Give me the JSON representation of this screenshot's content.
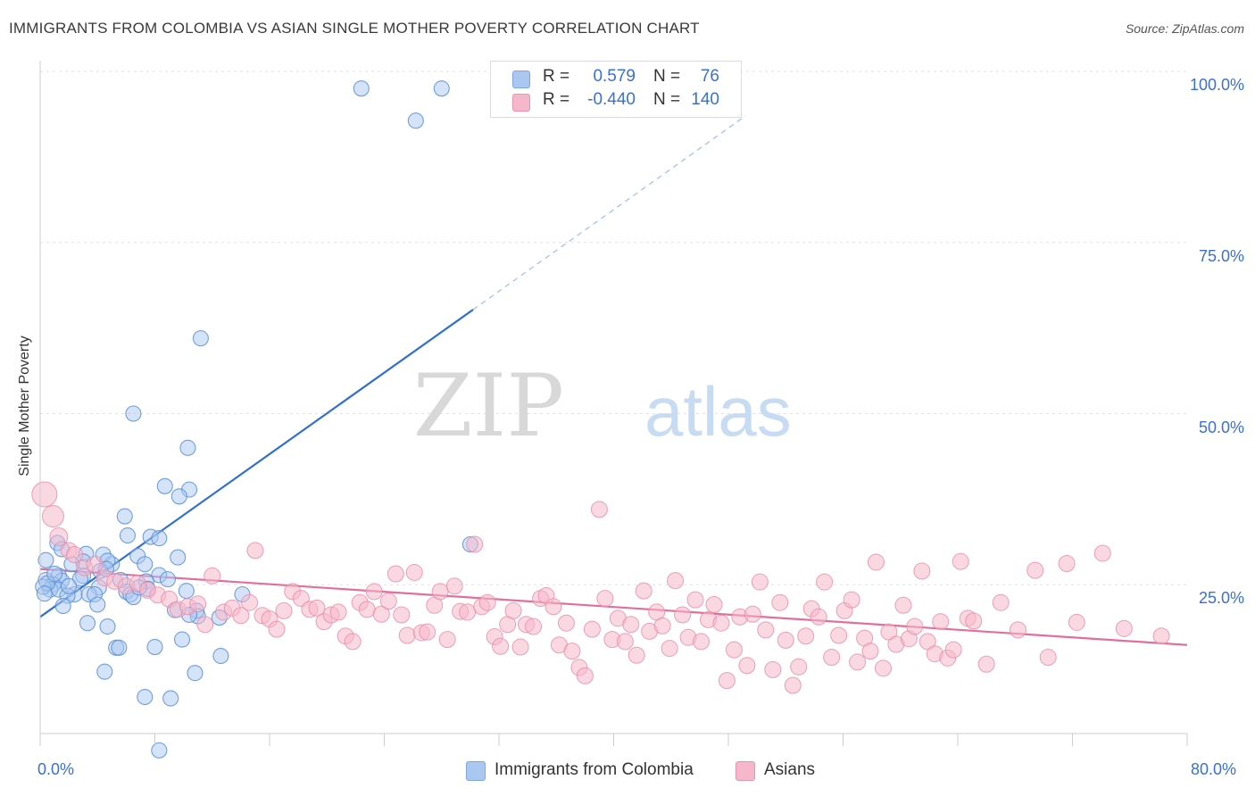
{
  "header": {
    "title": "IMMIGRANTS FROM COLOMBIA VS ASIAN SINGLE MOTHER POVERTY CORRELATION CHART",
    "source": "Source: ZipAtlas.com"
  },
  "watermark": {
    "zip": "ZIP",
    "atlas": "atlas"
  },
  "legend_top": {
    "rows": [
      {
        "r_label": "R =",
        "r_value": "0.579",
        "n_label": "N =",
        "n_value": "76",
        "color": "#a9c7f0"
      },
      {
        "r_label": "R =",
        "r_value": "-0.440",
        "n_label": "N =",
        "n_value": "140",
        "color": "#f5b8cb"
      }
    ]
  },
  "legend_bottom": {
    "items": [
      {
        "label": "Immigrants from Colombia",
        "color": "#a9c7f0"
      },
      {
        "label": "Asians",
        "color": "#f5b8cb"
      }
    ]
  },
  "chart_data": {
    "type": "scatter",
    "title": "IMMIGRANTS FROM COLOMBIA VS ASIAN SINGLE MOTHER POVERTY CORRELATION CHART",
    "xlabel": "",
    "ylabel": "Single Mother Poverty",
    "xlim": [
      0,
      80
    ],
    "ylim": [
      0,
      100
    ],
    "x_tick_labels": [
      "0.0%",
      "80.0%"
    ],
    "y_tick_labels": [
      "25.0%",
      "50.0%",
      "75.0%",
      "100.0%"
    ],
    "y_ticks": [
      25,
      50,
      75,
      100
    ],
    "grid": true,
    "legend_placement": "top-center",
    "colors": {
      "blue_fill": "#a9c7f0",
      "blue_stroke": "#5b8fd9",
      "blue_line": "#2f6fd0",
      "pink_fill": "#f5b8cb",
      "pink_stroke": "#e88aa8",
      "pink_line": "#e0709a",
      "tick_label": "#3a6fd8"
    },
    "series": [
      {
        "name": "Immigrants from Colombia",
        "color": "#a9c7f0",
        "points": [
          [
            22.4,
            97.5
          ],
          [
            28.0,
            97.5
          ],
          [
            26.2,
            92.8
          ],
          [
            11.2,
            61.0
          ],
          [
            6.5,
            50.0
          ],
          [
            10.3,
            45.0
          ],
          [
            8.7,
            39.4
          ],
          [
            10.4,
            38.9
          ],
          [
            9.7,
            37.9
          ],
          [
            5.9,
            35.0
          ],
          [
            30.0,
            30.9
          ],
          [
            6.1,
            32.2
          ],
          [
            7.7,
            32.0
          ],
          [
            1.2,
            31.1
          ],
          [
            8.3,
            31.8
          ],
          [
            4.4,
            29.4
          ],
          [
            3.2,
            29.5
          ],
          [
            1.5,
            30.2
          ],
          [
            9.6,
            29.0
          ],
          [
            6.8,
            29.2
          ],
          [
            3.0,
            28.4
          ],
          [
            5.0,
            28.0
          ],
          [
            4.7,
            28.5
          ],
          [
            0.4,
            28.6
          ],
          [
            2.2,
            28.0
          ],
          [
            7.3,
            28.0
          ],
          [
            4.2,
            27.0
          ],
          [
            4.6,
            27.3
          ],
          [
            1.3,
            26.3
          ],
          [
            3.0,
            26.3
          ],
          [
            2.8,
            25.9
          ],
          [
            1.5,
            25.6
          ],
          [
            8.3,
            26.4
          ],
          [
            0.4,
            25.7
          ],
          [
            8.9,
            25.8
          ],
          [
            0.9,
            25.0
          ],
          [
            7.4,
            25.5
          ],
          [
            4.1,
            24.6
          ],
          [
            7.5,
            24.4
          ],
          [
            0.7,
            24.3
          ],
          [
            1.3,
            24.3
          ],
          [
            2.4,
            23.6
          ],
          [
            3.4,
            23.6
          ],
          [
            6.0,
            24.0
          ],
          [
            5.6,
            25.7
          ],
          [
            3.8,
            23.6
          ],
          [
            6.3,
            23.6
          ],
          [
            10.2,
            24.1
          ],
          [
            14.1,
            23.6
          ],
          [
            1.9,
            23.4
          ],
          [
            6.5,
            23.2
          ],
          [
            1.6,
            21.9
          ],
          [
            9.4,
            21.3
          ],
          [
            10.9,
            21.2
          ],
          [
            4.0,
            22.1
          ],
          [
            11.0,
            20.4
          ],
          [
            10.4,
            20.6
          ],
          [
            12.5,
            20.2
          ],
          [
            3.3,
            19.4
          ],
          [
            4.7,
            18.9
          ],
          [
            9.9,
            17.0
          ],
          [
            5.3,
            15.8
          ],
          [
            5.5,
            15.8
          ],
          [
            8.0,
            15.9
          ],
          [
            12.6,
            14.6
          ],
          [
            4.5,
            12.3
          ],
          [
            10.8,
            12.1
          ],
          [
            7.3,
            8.6
          ],
          [
            9.1,
            8.4
          ],
          [
            8.3,
            0.8
          ],
          [
            0.2,
            24.7
          ],
          [
            0.5,
            25.2
          ],
          [
            1.0,
            26.6
          ],
          [
            2.0,
            24.8
          ],
          [
            6.9,
            24.6
          ],
          [
            0.3,
            23.7
          ]
        ]
      },
      {
        "name": "Asians",
        "color": "#f5b8cb",
        "points": [
          [
            0.3,
            38.2
          ],
          [
            0.9,
            35.0
          ],
          [
            1.3,
            32.0
          ],
          [
            2.0,
            30.0
          ],
          [
            2.4,
            29.4
          ],
          [
            3.1,
            27.5
          ],
          [
            3.8,
            28.0
          ],
          [
            4.5,
            26.0
          ],
          [
            5.2,
            25.5
          ],
          [
            6.0,
            24.8
          ],
          [
            6.8,
            25.2
          ],
          [
            7.5,
            24.2
          ],
          [
            8.2,
            23.5
          ],
          [
            9.0,
            22.9
          ],
          [
            9.6,
            21.4
          ],
          [
            10.3,
            21.8
          ],
          [
            11.0,
            22.2
          ],
          [
            11.5,
            19.2
          ],
          [
            12.0,
            26.3
          ],
          [
            12.8,
            21.0
          ],
          [
            13.4,
            21.6
          ],
          [
            14.0,
            20.5
          ],
          [
            14.6,
            22.4
          ],
          [
            15.0,
            30.0
          ],
          [
            15.5,
            20.5
          ],
          [
            16.0,
            20.0
          ],
          [
            16.5,
            18.5
          ],
          [
            17.0,
            21.2
          ],
          [
            17.6,
            24.0
          ],
          [
            18.2,
            23.0
          ],
          [
            18.8,
            21.4
          ],
          [
            19.3,
            21.6
          ],
          [
            19.8,
            19.6
          ],
          [
            20.3,
            20.6
          ],
          [
            20.8,
            21.0
          ],
          [
            21.3,
            17.5
          ],
          [
            21.8,
            16.7
          ],
          [
            22.3,
            22.4
          ],
          [
            22.8,
            21.4
          ],
          [
            23.3,
            24.0
          ],
          [
            23.8,
            20.7
          ],
          [
            24.3,
            22.6
          ],
          [
            24.8,
            26.6
          ],
          [
            25.2,
            20.6
          ],
          [
            25.6,
            17.6
          ],
          [
            26.1,
            26.8
          ],
          [
            26.6,
            18.0
          ],
          [
            27.0,
            18.1
          ],
          [
            27.5,
            22.0
          ],
          [
            27.9,
            24.0
          ],
          [
            28.4,
            17.0
          ],
          [
            28.9,
            24.8
          ],
          [
            29.3,
            21.1
          ],
          [
            29.8,
            21.0
          ],
          [
            30.3,
            30.9
          ],
          [
            30.8,
            21.8
          ],
          [
            31.2,
            22.4
          ],
          [
            31.7,
            17.4
          ],
          [
            32.1,
            16.0
          ],
          [
            32.6,
            19.2
          ],
          [
            33.0,
            21.2
          ],
          [
            33.5,
            15.9
          ],
          [
            33.9,
            19.2
          ],
          [
            34.4,
            18.9
          ],
          [
            34.9,
            23.0
          ],
          [
            35.3,
            23.4
          ],
          [
            35.8,
            21.8
          ],
          [
            36.2,
            16.2
          ],
          [
            36.7,
            19.4
          ],
          [
            37.1,
            15.3
          ],
          [
            37.6,
            12.9
          ],
          [
            38.0,
            11.7
          ],
          [
            38.5,
            18.5
          ],
          [
            39.0,
            36.0
          ],
          [
            39.4,
            23.0
          ],
          [
            39.9,
            17.0
          ],
          [
            40.3,
            20.1
          ],
          [
            40.8,
            16.7
          ],
          [
            41.2,
            19.2
          ],
          [
            41.6,
            14.7
          ],
          [
            42.1,
            24.1
          ],
          [
            42.5,
            18.2
          ],
          [
            43.0,
            21.0
          ],
          [
            43.4,
            19.0
          ],
          [
            43.9,
            15.7
          ],
          [
            44.3,
            25.6
          ],
          [
            44.8,
            20.6
          ],
          [
            45.2,
            17.3
          ],
          [
            45.7,
            22.8
          ],
          [
            46.1,
            16.7
          ],
          [
            46.6,
            19.9
          ],
          [
            47.0,
            22.1
          ],
          [
            47.5,
            19.4
          ],
          [
            47.9,
            11.0
          ],
          [
            48.4,
            15.5
          ],
          [
            48.8,
            20.3
          ],
          [
            49.3,
            13.2
          ],
          [
            49.7,
            20.7
          ],
          [
            50.2,
            25.4
          ],
          [
            50.6,
            18.4
          ],
          [
            51.1,
            12.6
          ],
          [
            51.6,
            22.4
          ],
          [
            52.0,
            16.9
          ],
          [
            52.5,
            10.3
          ],
          [
            52.9,
            13.0
          ],
          [
            53.4,
            17.5
          ],
          [
            53.8,
            21.5
          ],
          [
            54.3,
            20.3
          ],
          [
            54.7,
            25.4
          ],
          [
            55.2,
            14.4
          ],
          [
            55.7,
            17.6
          ],
          [
            56.1,
            21.2
          ],
          [
            56.6,
            22.8
          ],
          [
            57.0,
            13.7
          ],
          [
            57.5,
            17.2
          ],
          [
            57.9,
            15.3
          ],
          [
            58.3,
            28.3
          ],
          [
            58.8,
            12.8
          ],
          [
            59.2,
            18.1
          ],
          [
            59.7,
            16.3
          ],
          [
            60.2,
            22.0
          ],
          [
            60.6,
            17.1
          ],
          [
            61.0,
            18.9
          ],
          [
            61.5,
            27.0
          ],
          [
            61.9,
            16.7
          ],
          [
            62.4,
            14.9
          ],
          [
            62.8,
            19.6
          ],
          [
            63.3,
            14.3
          ],
          [
            63.7,
            15.5
          ],
          [
            64.2,
            28.4
          ],
          [
            64.7,
            20.1
          ],
          [
            65.1,
            19.7
          ],
          [
            66.0,
            13.4
          ],
          [
            67.0,
            22.4
          ],
          [
            68.2,
            18.4
          ],
          [
            69.4,
            27.1
          ],
          [
            70.3,
            14.4
          ],
          [
            71.6,
            28.1
          ],
          [
            72.3,
            19.5
          ],
          [
            74.1,
            29.6
          ],
          [
            75.6,
            18.6
          ],
          [
            78.2,
            17.5
          ]
        ]
      }
    ],
    "trend_lines": [
      {
        "series": "Immigrants from Colombia",
        "x": [
          0,
          30.2
        ],
        "y": [
          20.3,
          65.2
        ],
        "extended_to": [
          49.2,
          93.5
        ]
      },
      {
        "series": "Asians",
        "x": [
          0,
          80
        ],
        "y": [
          27.3,
          16.2
        ]
      }
    ]
  }
}
